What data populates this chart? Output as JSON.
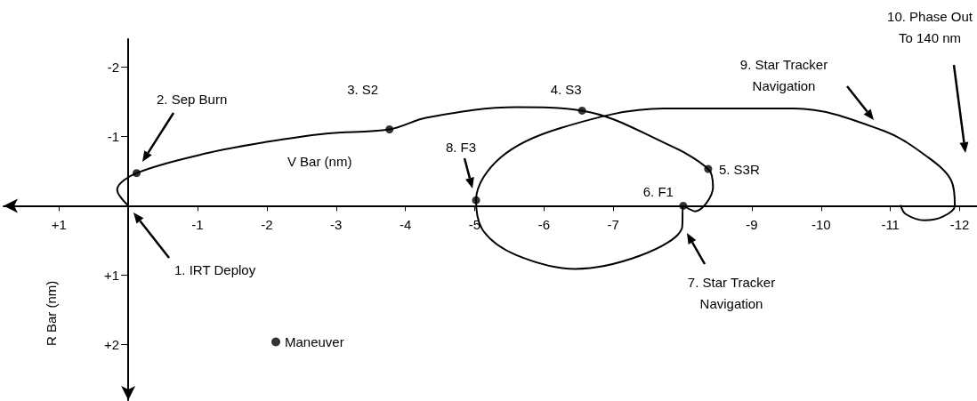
{
  "chart_data": {
    "type": "line",
    "xlabel": "V Bar (nm)",
    "ylabel": "R Bar (nm)",
    "xlim": [
      1.8,
      -12.25
    ],
    "ylim": [
      2.8,
      -2.4
    ],
    "xticks": [
      {
        "value": 1,
        "label": "+1"
      },
      -1,
      -2,
      -3,
      -4,
      -5,
      -6,
      -7,
      -9,
      -10,
      -11,
      -12
    ],
    "yticks": [
      -2,
      -1,
      {
        "value": 1,
        "label": "+1"
      },
      {
        "value": 2,
        "label": "+2"
      }
    ],
    "grid": false,
    "legend": "bottom left",
    "series": [
      {
        "color": "#000000",
        "marker": "none",
        "x": [
          0,
          0.16,
          -0.12,
          -1.15,
          -2.0,
          -2.86,
          -3.77,
          -4.31,
          -5.6,
          -6.55,
          -7.73,
          -8.37,
          -8.44,
          -8.18,
          -8.01,
          -7.99,
          -6.45,
          -5.6,
          -5.13,
          -5.02,
          -5.38,
          -6.24,
          -7.73,
          -9.61,
          -10.9,
          -11.54,
          -11.88,
          -11.93,
          -11.75,
          -11.49,
          -11.22,
          -11.15
        ],
        "values": [
          0,
          -0.23,
          -0.47,
          -0.76,
          -0.92,
          -1.04,
          -1.1,
          -1.27,
          -1.42,
          -1.37,
          -0.91,
          -0.53,
          -0.27,
          0.08,
          0,
          0.33,
          0.91,
          0.71,
          0.37,
          -0.08,
          -0.7,
          -1.12,
          -1.4,
          -1.4,
          -1.08,
          -0.7,
          -0.36,
          0,
          0.16,
          0.21,
          0.12,
          0
        ]
      },
      {
        "type": "scatter",
        "name": "Maneuver",
        "color": "#000000",
        "marker": "circle",
        "x": [
          -0.12,
          -3.77,
          -6.55,
          -8.37,
          -8.01,
          -5.02
        ],
        "values": [
          -0.47,
          -1.1,
          -1.37,
          -0.53,
          0,
          -0.08
        ]
      }
    ],
    "annotations": [
      "1. IRT Deploy",
      "2. Sep Burn",
      {
        "text": "3. S2",
        "x": -3.77,
        "y": -1.1
      },
      {
        "text": "4. S3",
        "x": -6.55,
        "y": -1.37
      },
      {
        "text": "5. S3R",
        "x": -8.37,
        "y": -0.53
      },
      {
        "text": "6. F1",
        "x": -8.01,
        "y": 0
      },
      "7. Star Tracker\nNavigation",
      "8. F3",
      "9. Star Tracker\nNavigation",
      "10. Phase Out\nTo 140 nm"
    ]
  }
}
